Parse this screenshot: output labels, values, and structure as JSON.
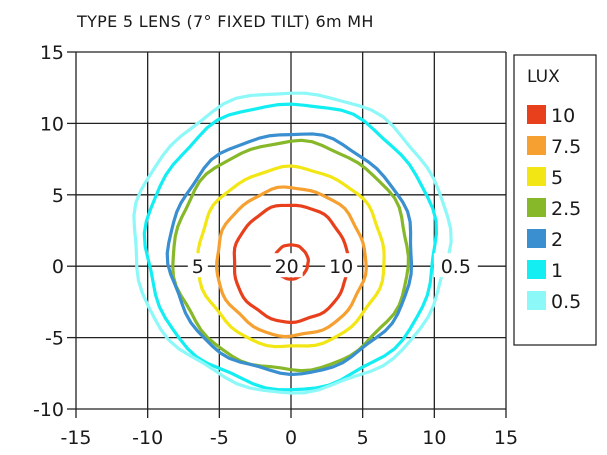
{
  "chart_data": {
    "type": "contour",
    "title": "TYPE 5 LENS (7° FIXED TILT) 6m MH",
    "xlim": [
      -15,
      15
    ],
    "ylim": [
      -10,
      15
    ],
    "x_ticks": [
      -15,
      -10,
      -5,
      0,
      5,
      10,
      15
    ],
    "y_ticks": [
      -10,
      -5,
      0,
      5,
      10,
      15
    ],
    "grid": true,
    "legend": {
      "title": "LUX",
      "position": "right",
      "entries": [
        {
          "label": "10",
          "color": "#e8401c"
        },
        {
          "label": "7.5",
          "color": "#f5a030"
        },
        {
          "label": "5",
          "color": "#f2e614"
        },
        {
          "label": "2.5",
          "color": "#86b829"
        },
        {
          "label": "2",
          "color": "#3a8fd0"
        },
        {
          "label": "1",
          "color": "#12eef2"
        },
        {
          "label": "0.5",
          "color": "#8df8f8"
        }
      ]
    },
    "contours": [
      {
        "level": "20",
        "color": "#e8401c",
        "cx": 0,
        "cy": 0.3,
        "rx": 1.2,
        "ry": 1.2
      },
      {
        "level": "10",
        "color": "#e8401c",
        "cx": 0,
        "cy": 0.2,
        "rx": 4.0,
        "ry": 4.1
      },
      {
        "level": "7.5",
        "color": "#f5a030",
        "cx": 0,
        "cy": 0.3,
        "rx": 5.2,
        "ry": 5.2
      },
      {
        "level": "5",
        "color": "#f2e614",
        "cx": 0,
        "cy": 0.6,
        "rx": 6.5,
        "ry": 6.3
      },
      {
        "level": "2.5",
        "color": "#86b829",
        "cx": 0,
        "cy": 0.7,
        "rx": 8.2,
        "ry": 8.0
      },
      {
        "level": "2",
        "color": "#3a8fd0",
        "cx": 0,
        "cy": 0.9,
        "rx": 8.5,
        "ry": 8.4
      },
      {
        "level": "1",
        "color": "#12eef2",
        "cx": 0,
        "cy": 1.4,
        "rx": 10.1,
        "ry": 10.0
      },
      {
        "level": "0.5",
        "color": "#8df8f8",
        "cx": 0,
        "cy": 1.7,
        "rx": 11.0,
        "ry": 10.5
      }
    ],
    "annotations": [
      {
        "text": "20",
        "x": -0.3,
        "y": 0
      },
      {
        "text": "10",
        "x": 3.5,
        "y": 0
      },
      {
        "text": "5",
        "x": -6.5,
        "y": 0
      },
      {
        "text": "0.5",
        "x": 11.5,
        "y": 0
      }
    ]
  }
}
